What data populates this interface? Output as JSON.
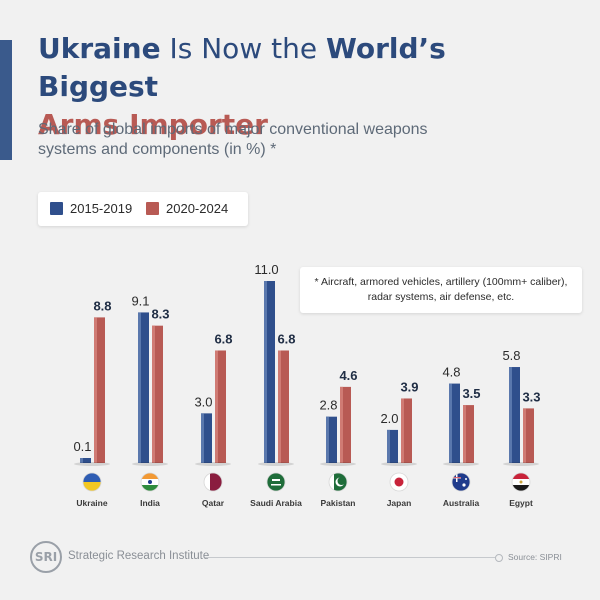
{
  "header": {
    "title_part1": "Ukraine",
    "title_part2": " Is Now the ",
    "title_part3": "World’s Biggest",
    "title_part4": "Arms Importer",
    "subtitle": "Share of global imports of major conventional weapons systems and components (in %) *"
  },
  "legend": {
    "items": [
      {
        "label": "2015-2019",
        "color": "#2f4f8c"
      },
      {
        "label": "2020-2024",
        "color": "#b85a54"
      }
    ]
  },
  "note": "* Aircraft, armored vehicles, artillery (100mm+ caliber), radar systems, air defense, etc.",
  "footer": {
    "logo_text": "SRI",
    "organization": "Strategic Research Institute",
    "source": "Source: SIPRI"
  },
  "chart_data": {
    "type": "bar",
    "categories": [
      "Ukraine",
      "India",
      "Qatar",
      "Saudi Arabia",
      "Pakistan",
      "Japan",
      "Australia",
      "Egypt"
    ],
    "series": [
      {
        "name": "2015-2019",
        "values": [
          0.1,
          9.1,
          3.0,
          11.0,
          2.8,
          2.0,
          4.8,
          5.8
        ],
        "color": "#2f4f8c",
        "labels": [
          "0.1",
          "9.1",
          "3.0",
          "11.0",
          "2.8",
          "2.0",
          "4.8",
          "5.8"
        ]
      },
      {
        "name": "2020-2024",
        "values": [
          8.8,
          8.3,
          6.8,
          6.8,
          4.6,
          3.9,
          3.5,
          3.3
        ],
        "color": "#b85a54",
        "labels": [
          "8.8",
          "8.3",
          "6.8",
          "6.8",
          "4.6",
          "3.9",
          "3.5",
          "3.3"
        ]
      }
    ],
    "flags": [
      "Ukraine flag",
      "India flag",
      "Qatar flag",
      "Saudi Arabia flag",
      "Pakistan flag",
      "Japan flag",
      "Australia flag",
      "Egypt flag"
    ],
    "ylim": [
      0,
      11
    ]
  }
}
